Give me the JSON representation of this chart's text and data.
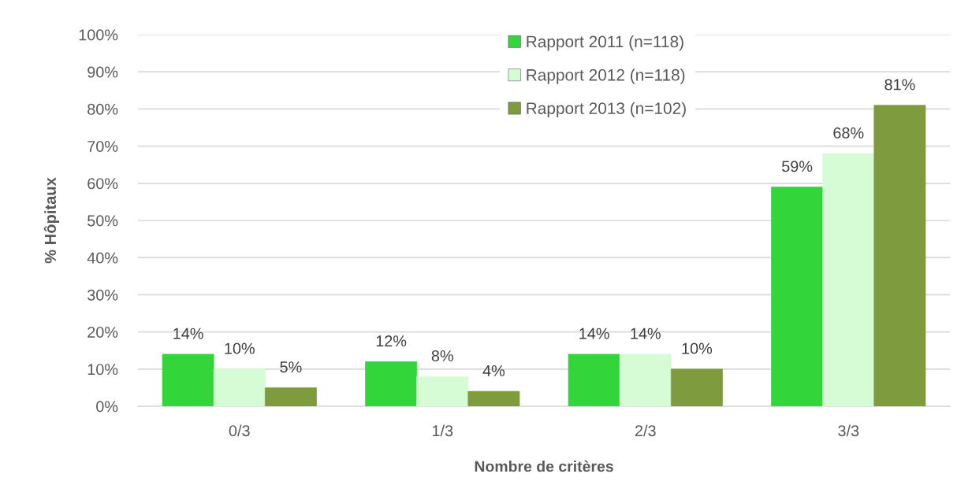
{
  "chart_data": {
    "type": "bar",
    "xlabel": "Nombre de critères",
    "ylabel": "% Hôpitaux",
    "categories": [
      "0/3",
      "1/3",
      "2/3",
      "3/3"
    ],
    "series": [
      {
        "name": "Rapport 2011 (n=118)",
        "color": "#33d63a",
        "values": [
          14,
          12,
          14,
          59
        ],
        "value_labels": [
          "14%",
          "12%",
          "14%",
          "59%"
        ]
      },
      {
        "name": "Rapport 2012 (n=118)",
        "color": "#d6fcd6",
        "values": [
          10,
          8,
          14,
          68
        ],
        "value_labels": [
          "10%",
          "8%",
          "14%",
          "68%"
        ]
      },
      {
        "name": "Rapport 2013 (n=102)",
        "color": "#7e9b3e",
        "values": [
          5,
          4,
          10,
          81
        ],
        "value_labels": [
          "5%",
          "4%",
          "10%",
          "81%"
        ]
      }
    ],
    "ylim": [
      0,
      100
    ],
    "yticks": [
      {
        "value": 0,
        "label": "0%"
      },
      {
        "value": 10,
        "label": "10%"
      },
      {
        "value": 20,
        "label": "20%"
      },
      {
        "value": 30,
        "label": "30%"
      },
      {
        "value": 40,
        "label": "40%"
      },
      {
        "value": 50,
        "label": "50%"
      },
      {
        "value": 60,
        "label": "60%"
      },
      {
        "value": 70,
        "label": "70%"
      },
      {
        "value": 80,
        "label": "80%"
      },
      {
        "value": 90,
        "label": "90%"
      },
      {
        "value": 100,
        "label": "100%"
      }
    ],
    "grid": "y",
    "legend": "top"
  }
}
